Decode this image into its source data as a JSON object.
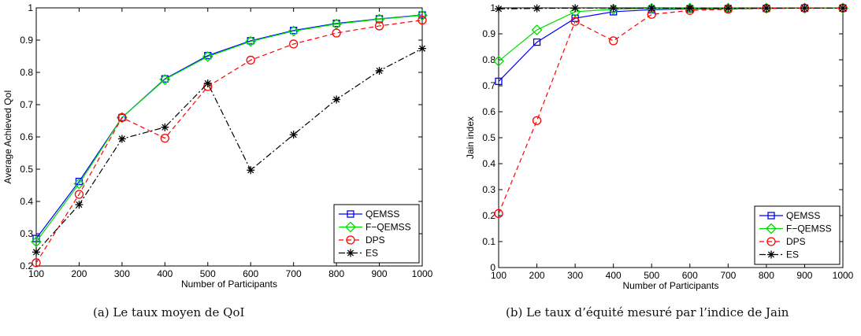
{
  "figure": {
    "caption_a": "(a)  Le taux moyen de QoI",
    "caption_b": "(b)  Le taux d’équité mesuré par l’indice de Jain"
  },
  "chart_data": [
    {
      "type": "line",
      "xlabel": "Number of Participants",
      "ylabel": "Average Achieved QoI",
      "x": [
        100,
        200,
        300,
        400,
        500,
        600,
        700,
        800,
        900,
        1000
      ],
      "xticks": [
        "100",
        "200",
        "300",
        "400",
        "500",
        "600",
        "700",
        "800",
        "900",
        "1000"
      ],
      "yticks": [
        "0.2",
        "0.3",
        "0.4",
        "0.5",
        "0.6",
        "0.7",
        "0.8",
        "0.9",
        "1"
      ],
      "xlim": [
        100,
        1000
      ],
      "ylim": [
        0.2,
        1.0
      ],
      "legend": "bottom-right",
      "series": [
        {
          "name": "QEMSS",
          "values": [
            0.285,
            0.462,
            0.66,
            0.78,
            0.852,
            0.898,
            0.93,
            0.952,
            0.966,
            0.978
          ],
          "color": "#0000ff",
          "marker": "square",
          "dash": "solid"
        },
        {
          "name": "F−QEMSS",
          "values": [
            0.275,
            0.455,
            0.66,
            0.778,
            0.849,
            0.896,
            0.928,
            0.95,
            0.965,
            0.977
          ],
          "color": "#00dd00",
          "marker": "diamond",
          "dash": "solid"
        },
        {
          "name": "DPS",
          "values": [
            0.21,
            0.422,
            0.66,
            0.596,
            0.756,
            0.838,
            0.888,
            0.922,
            0.944,
            0.962
          ],
          "color": "#ff0000",
          "marker": "circle",
          "dash": "dashed"
        },
        {
          "name": "ES",
          "values": [
            0.243,
            0.39,
            0.594,
            0.63,
            0.766,
            0.497,
            0.607,
            0.716,
            0.805,
            0.874
          ],
          "color": "#000000",
          "marker": "star",
          "dash": "dashdot"
        }
      ]
    },
    {
      "type": "line",
      "xlabel": "Number of Participants",
      "ylabel": "Jain index",
      "x": [
        100,
        200,
        300,
        400,
        500,
        600,
        700,
        800,
        900,
        1000
      ],
      "xticks": [
        "100",
        "200",
        "300",
        "400",
        "500",
        "600",
        "700",
        "800",
        "900",
        "1000"
      ],
      "yticks": [
        "0",
        "0.1",
        "0.2",
        "0.3",
        "0.4",
        "0.5",
        "0.6",
        "0.7",
        "0.8",
        "0.9",
        "1"
      ],
      "xlim": [
        100,
        1000
      ],
      "ylim": [
        0,
        1.0
      ],
      "legend": "bottom-right",
      "series": [
        {
          "name": "QEMSS",
          "values": [
            0.717,
            0.868,
            0.96,
            0.985,
            0.993,
            0.996,
            0.997,
            0.998,
            0.999,
            0.999
          ],
          "color": "#0000ff",
          "marker": "square",
          "dash": "solid"
        },
        {
          "name": "F−QEMSS",
          "values": [
            0.795,
            0.915,
            0.985,
            0.995,
            0.998,
            0.999,
            0.999,
            0.999,
            0.999,
            0.999
          ],
          "color": "#00dd00",
          "marker": "diamond",
          "dash": "solid"
        },
        {
          "name": "DPS",
          "values": [
            0.208,
            0.566,
            0.948,
            0.873,
            0.975,
            0.99,
            0.995,
            0.998,
            0.999,
            0.999
          ],
          "color": "#ff0000",
          "marker": "circle",
          "dash": "dashed"
        },
        {
          "name": "ES",
          "values": [
            0.996,
            0.998,
            0.999,
            0.999,
            0.999,
            0.999,
            0.999,
            0.999,
            0.999,
            0.999
          ],
          "color": "#000000",
          "marker": "star",
          "dash": "dashdot"
        }
      ]
    }
  ]
}
